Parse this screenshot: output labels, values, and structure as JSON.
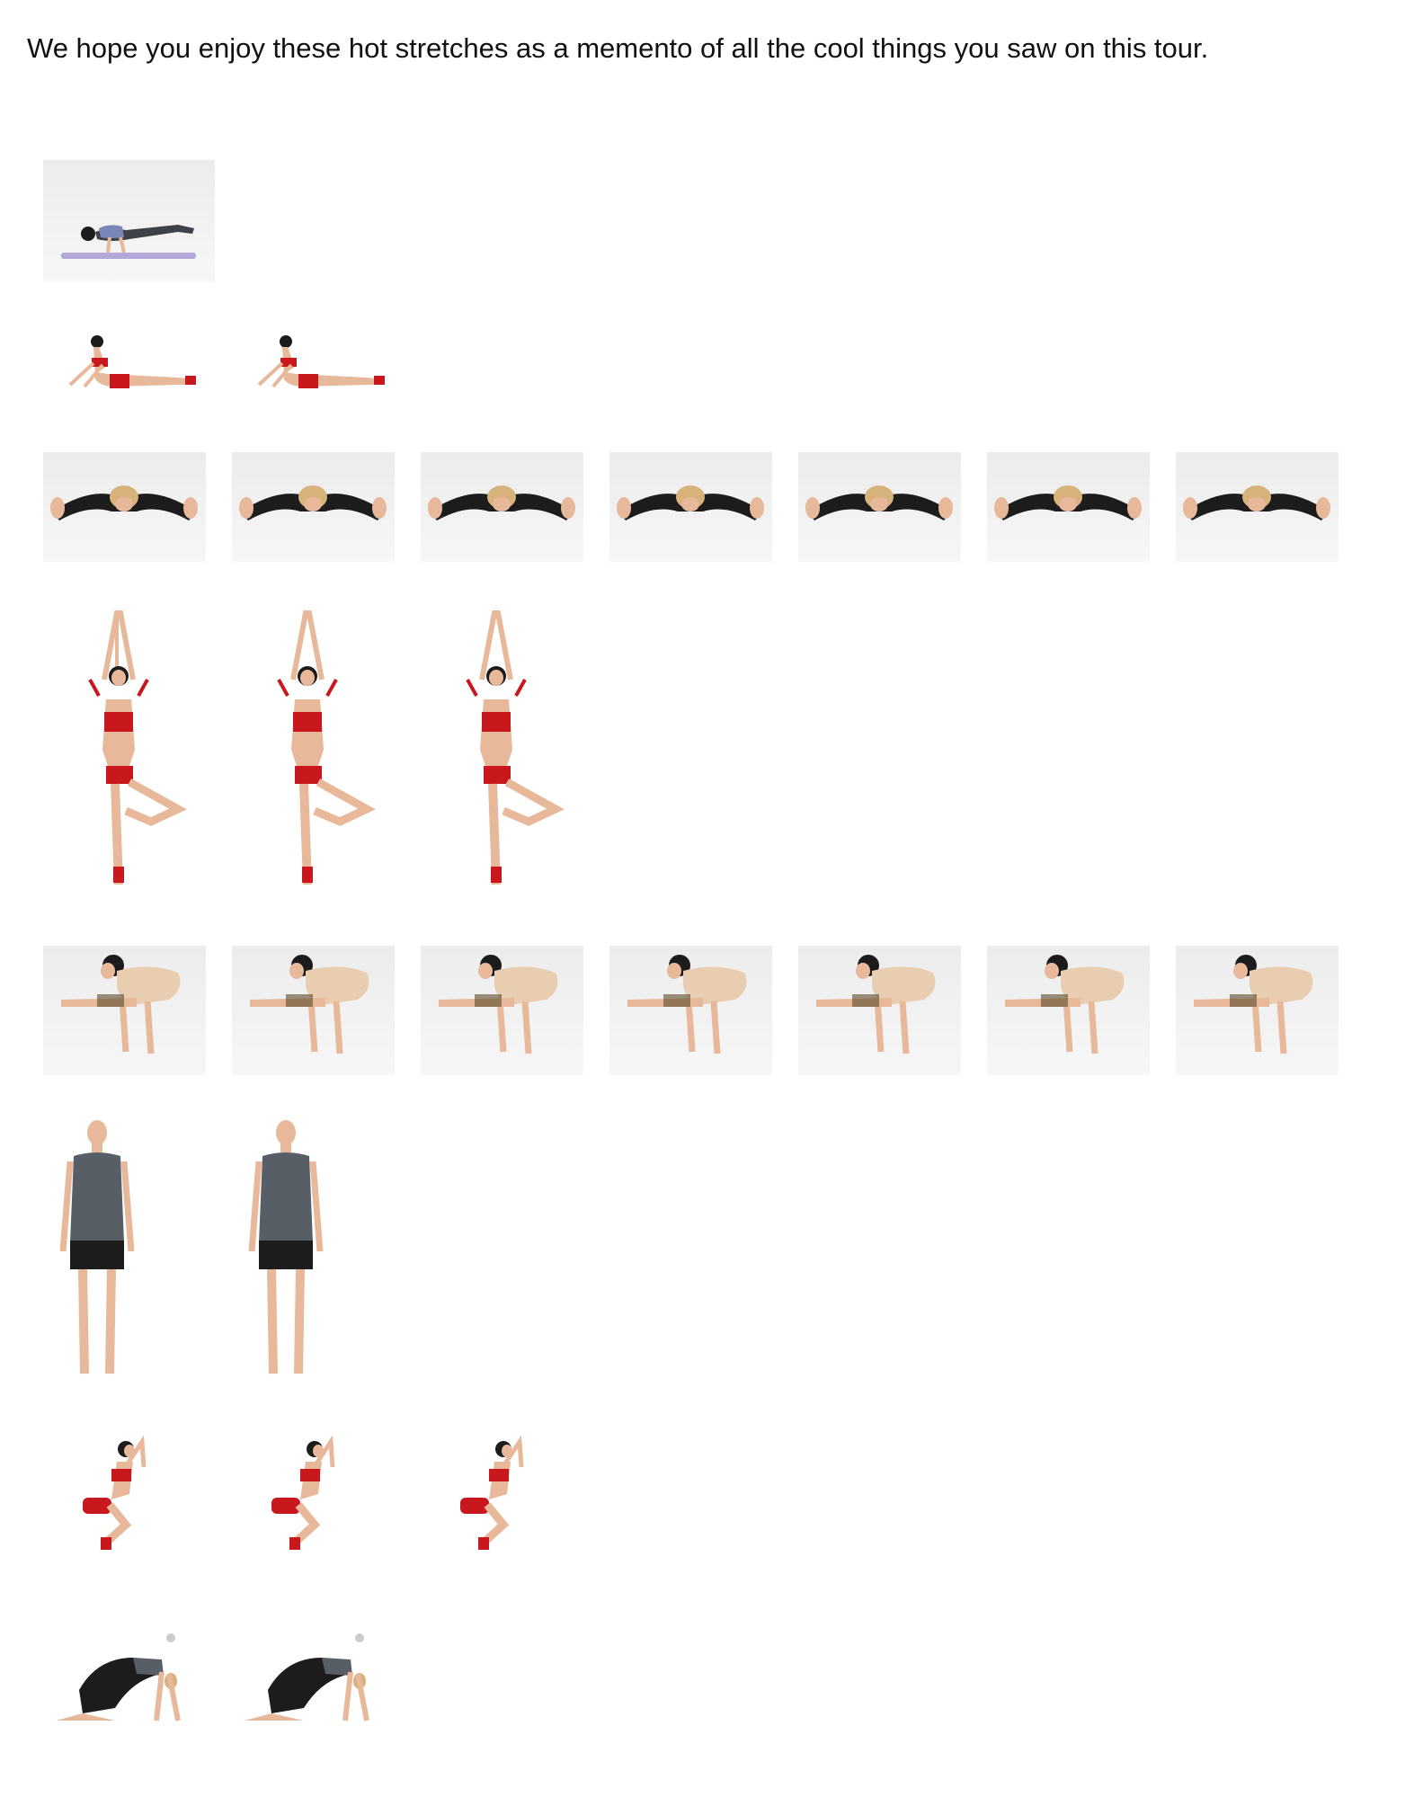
{
  "intro": {
    "text": "We hope you enjoy these hot stretches as a memento of all the cool things you saw on this tour."
  },
  "rows": [
    {
      "pose": "crow-pose-on-mat",
      "count": 1
    },
    {
      "pose": "cobra-pose",
      "count": 2
    },
    {
      "pose": "wide-leg-forward-fold",
      "count": 7
    },
    {
      "pose": "tree-pose",
      "count": 3
    },
    {
      "pose": "firefly-arm-balance",
      "count": 7
    },
    {
      "pose": "standing-man",
      "count": 2
    },
    {
      "pose": "chair-pose",
      "count": 3
    },
    {
      "pose": "cat-cow-pose",
      "count": 2
    }
  ],
  "colors": {
    "text": "#111111",
    "outfit_red": "#c8181e",
    "skin": "#e8b89a",
    "mat": "#b3a6d9",
    "shirt_gray": "#585e66",
    "pants_black": "#1c1c1c"
  }
}
